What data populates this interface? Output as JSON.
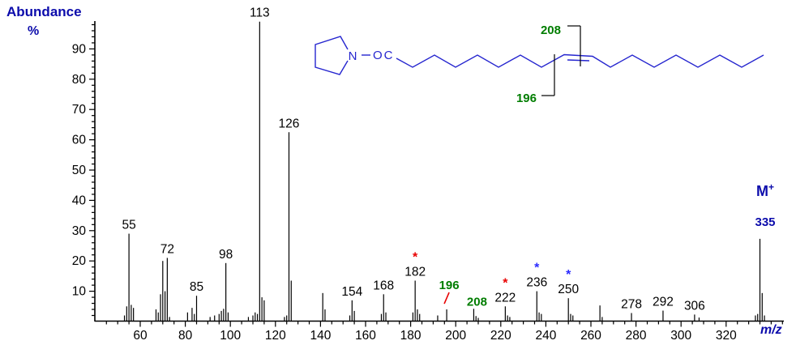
{
  "labels": {
    "ylabel_1": "Abundance",
    "ylabel_2": "%",
    "xlabel": "m/z"
  },
  "molecular_ion": {
    "symbol": "M",
    "charge": "+",
    "mz": "335"
  },
  "structure": {
    "n": "N",
    "oc": "OC",
    "retained_upper": "208",
    "retained_lower": "196"
  },
  "colors": {
    "axis": "#000000",
    "peak": "#000000",
    "label_blue": "#0b0bab",
    "structure_blue": "#2525cf",
    "green": "#007d00",
    "red": "#e80000",
    "star_blue": "#2a2aff"
  },
  "chart_data": {
    "type": "bar",
    "title": "Mass spectrum with abundance (%) vs m/z",
    "xlabel": "m/z",
    "ylabel": "Abundance %",
    "xlim": [
      40,
      346
    ],
    "ylim": [
      0,
      100
    ],
    "x_major_ticks": [
      60,
      80,
      100,
      120,
      140,
      160,
      180,
      200,
      220,
      240,
      260,
      280,
      300,
      320
    ],
    "x_minor_tick_step": 5,
    "y_major_ticks": [
      10,
      20,
      30,
      40,
      50,
      60,
      70,
      80,
      90
    ],
    "y_minor_tick_step": 2,
    "peaks": [
      [
        53,
        2
      ],
      [
        54,
        5
      ],
      [
        55,
        29
      ],
      [
        56,
        5.5
      ],
      [
        57,
        4.5
      ],
      [
        67,
        4
      ],
      [
        68,
        3
      ],
      [
        69,
        9
      ],
      [
        70,
        20
      ],
      [
        71,
        10
      ],
      [
        72,
        21
      ],
      [
        73,
        1.5
      ],
      [
        81,
        3
      ],
      [
        83,
        4.5
      ],
      [
        84,
        2.5
      ],
      [
        85,
        8.5
      ],
      [
        91,
        1.5
      ],
      [
        93,
        2
      ],
      [
        95,
        2.5
      ],
      [
        96,
        3.5
      ],
      [
        97,
        4.2
      ],
      [
        98,
        19.3
      ],
      [
        99,
        3
      ],
      [
        108,
        1.5
      ],
      [
        110,
        2
      ],
      [
        111,
        3
      ],
      [
        112,
        2.5
      ],
      [
        113,
        99
      ],
      [
        114,
        8
      ],
      [
        115,
        7
      ],
      [
        124,
        1.5
      ],
      [
        125,
        2
      ],
      [
        126,
        62.5
      ],
      [
        127,
        13.5
      ],
      [
        141,
        9.4
      ],
      [
        142,
        4
      ],
      [
        153,
        2
      ],
      [
        154,
        7
      ],
      [
        155,
        3.5
      ],
      [
        167,
        2.5
      ],
      [
        168,
        9
      ],
      [
        169,
        3
      ],
      [
        181,
        3
      ],
      [
        182,
        13.5
      ],
      [
        183,
        4
      ],
      [
        184,
        2.5
      ],
      [
        192,
        2
      ],
      [
        196,
        4
      ],
      [
        208,
        4.2
      ],
      [
        209,
        1.8
      ],
      [
        210,
        1.2
      ],
      [
        222,
        5
      ],
      [
        223,
        2
      ],
      [
        224,
        1.5
      ],
      [
        236,
        10
      ],
      [
        237,
        3
      ],
      [
        238,
        2.5
      ],
      [
        250,
        7.7
      ],
      [
        251,
        2.5
      ],
      [
        252,
        2
      ],
      [
        264,
        5.3
      ],
      [
        265,
        1.5
      ],
      [
        278,
        2.8
      ],
      [
        292,
        3.6
      ],
      [
        306,
        2.3
      ],
      [
        308,
        1.3
      ],
      [
        333,
        2
      ],
      [
        334,
        2.5
      ],
      [
        335,
        27.3
      ],
      [
        336,
        9.4
      ],
      [
        337,
        2
      ]
    ],
    "peak_labels": [
      {
        "mz": 55,
        "text": "55"
      },
      {
        "mz": 72,
        "text": "72"
      },
      {
        "mz": 85,
        "text": "85"
      },
      {
        "mz": 98,
        "text": "98"
      },
      {
        "mz": 113,
        "text": "113"
      },
      {
        "mz": 126,
        "text": "126"
      },
      {
        "mz": 154,
        "text": "154"
      },
      {
        "mz": 168,
        "text": "168"
      },
      {
        "mz": 182,
        "text": "182",
        "marker": "*",
        "marker_color": "red"
      },
      {
        "mz": 196,
        "text": "196",
        "color": "green",
        "slash": true
      },
      {
        "mz": 208,
        "text": "208",
        "color": "green"
      },
      {
        "mz": 222,
        "text": "222",
        "marker": "*",
        "marker_color": "red"
      },
      {
        "mz": 236,
        "text": "236",
        "marker": "*",
        "marker_color": "blue"
      },
      {
        "mz": 250,
        "text": "250",
        "marker": "*",
        "marker_color": "blue"
      },
      {
        "mz": 278,
        "text": "278"
      },
      {
        "mz": 292,
        "text": "292"
      },
      {
        "mz": 306,
        "text": "306"
      }
    ],
    "legend": null,
    "grid": false
  }
}
